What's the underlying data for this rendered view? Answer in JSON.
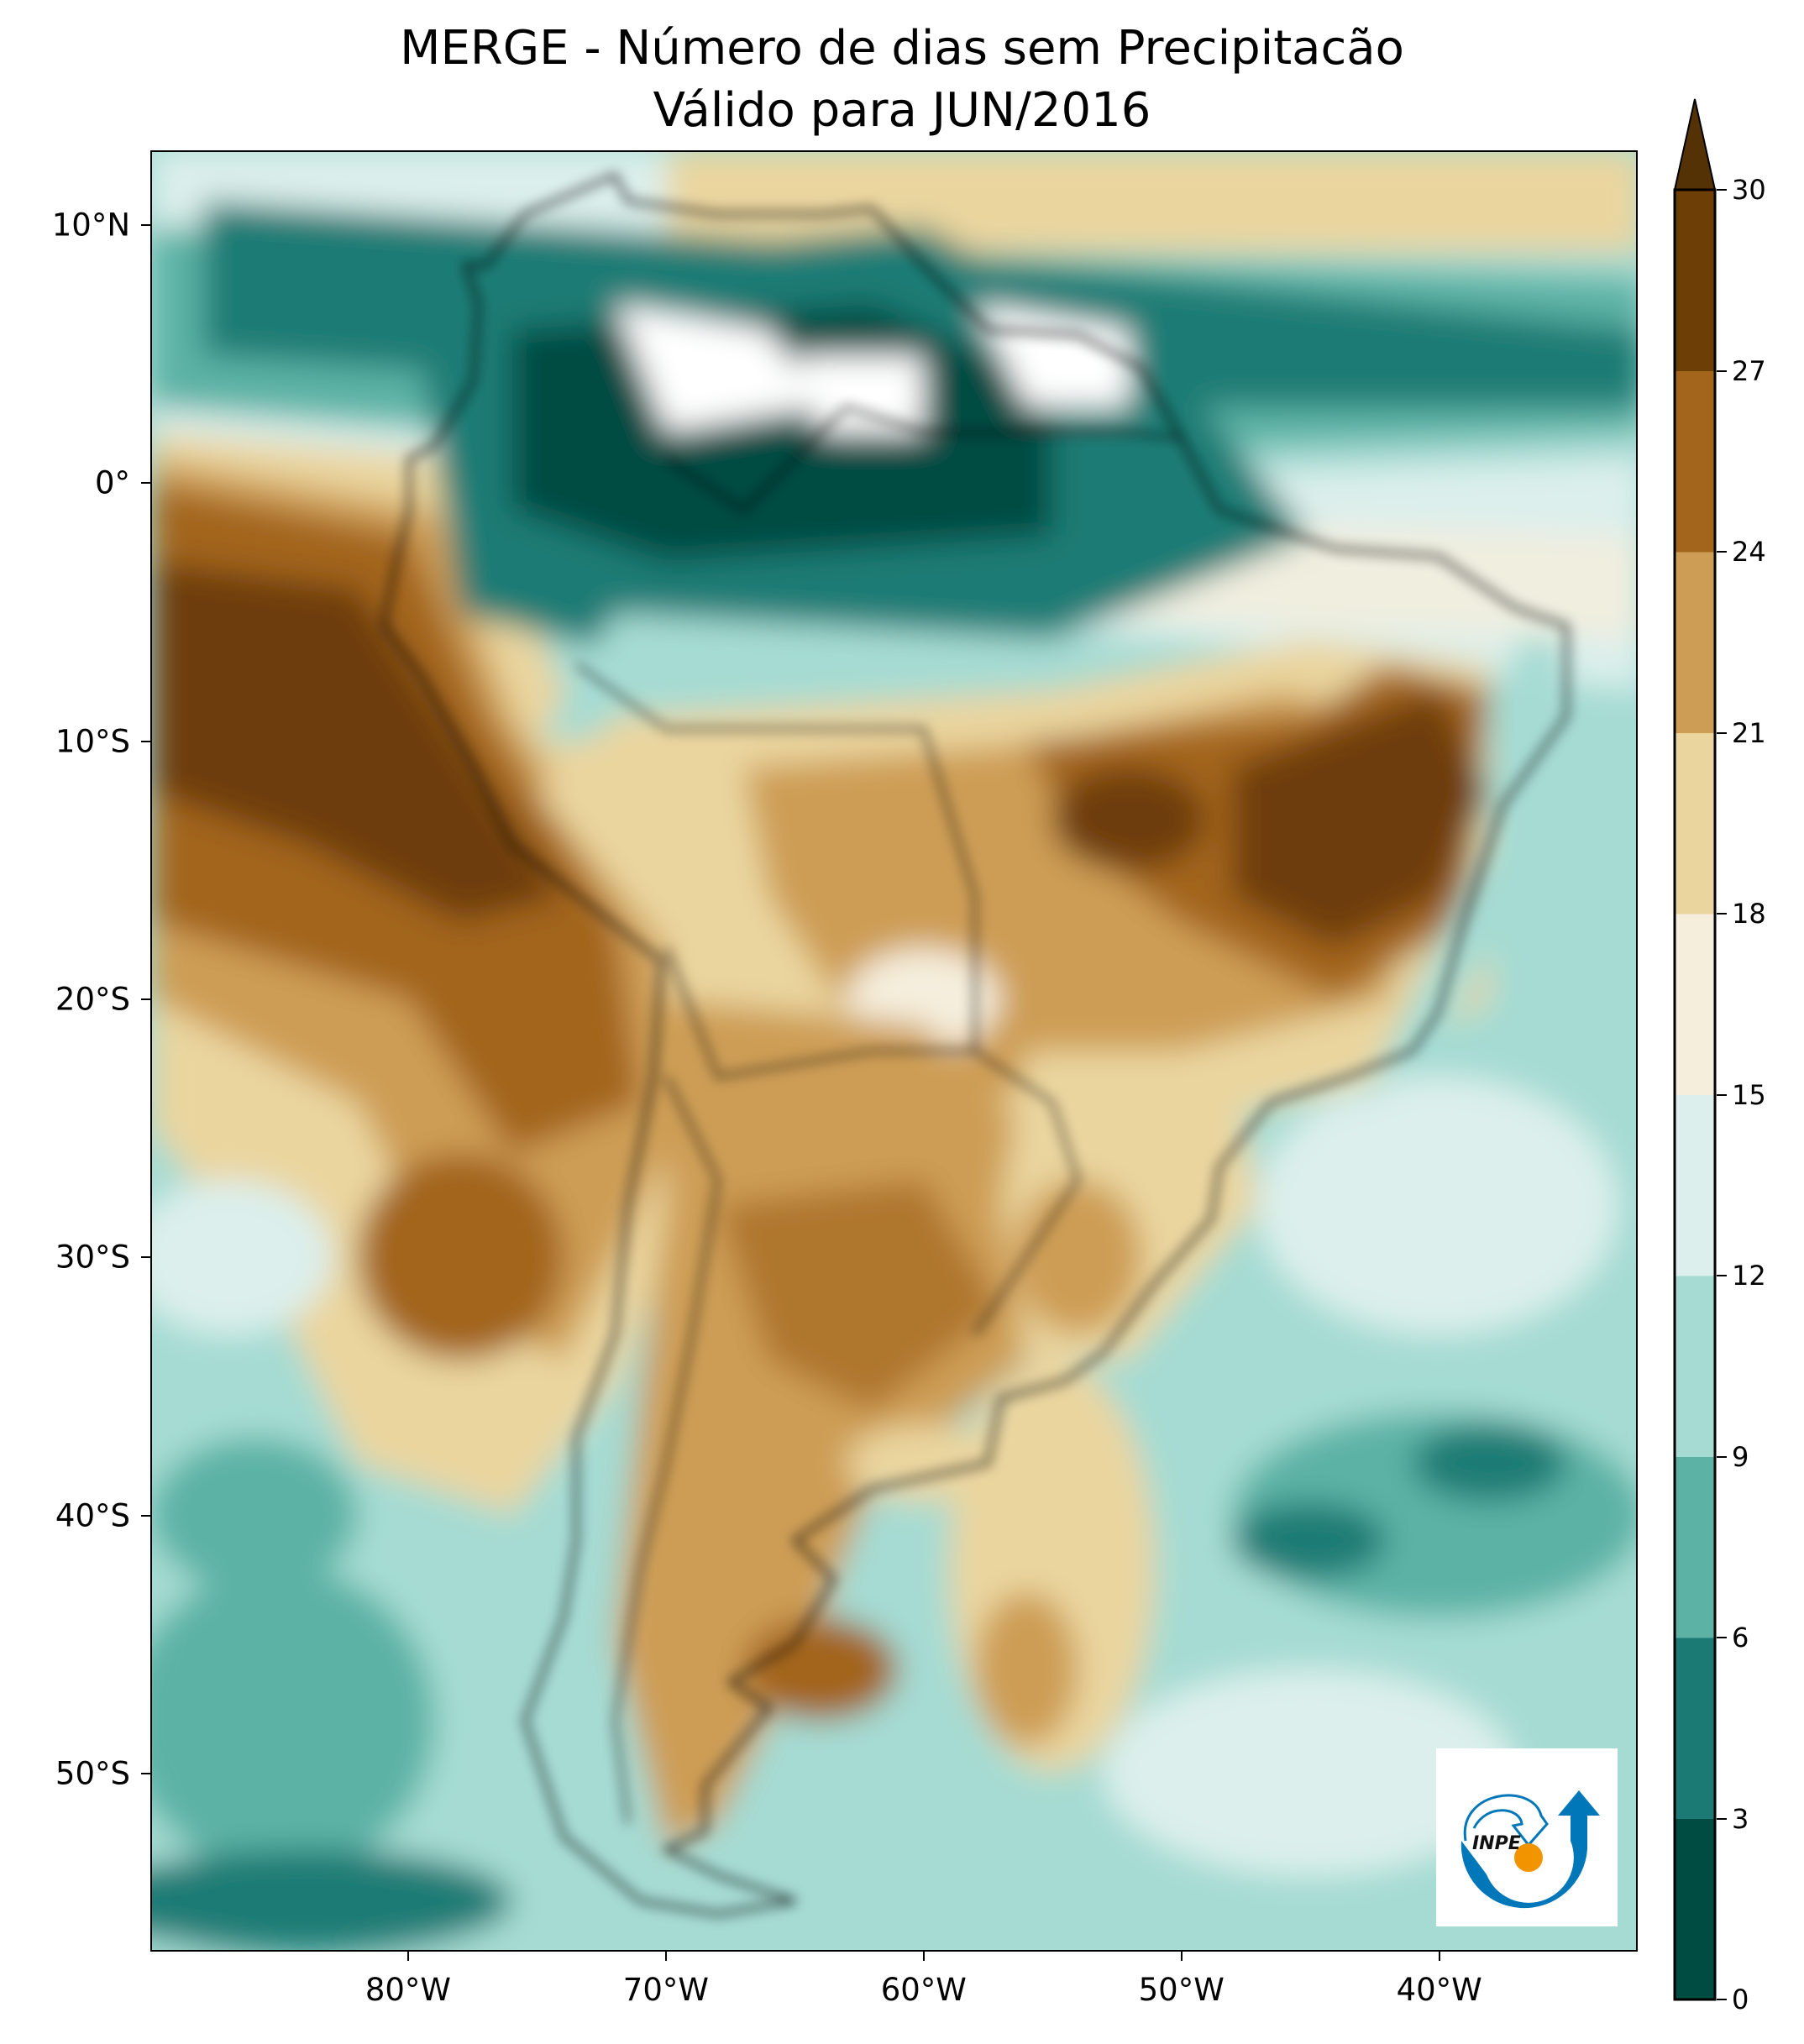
{
  "title": {
    "line1": "MERGE - Número de dias sem Precipitacão",
    "line2": "Válido para JUN/2016"
  },
  "map_extent": {
    "lon": [
      -90,
      -32.3
    ],
    "lat": [
      -56.9,
      12.9
    ]
  },
  "lat_ticks": [
    {
      "value": 10,
      "label": "10°N"
    },
    {
      "value": 0,
      "label": "0°"
    },
    {
      "value": -10,
      "label": "10°S"
    },
    {
      "value": -20,
      "label": "20°S"
    },
    {
      "value": -30,
      "label": "30°S"
    },
    {
      "value": -40,
      "label": "40°S"
    },
    {
      "value": -50,
      "label": "50°S"
    }
  ],
  "lon_ticks": [
    {
      "value": -80,
      "label": "80°W"
    },
    {
      "value": -70,
      "label": "70°W"
    },
    {
      "value": -60,
      "label": "60°W"
    },
    {
      "value": -50,
      "label": "50°W"
    },
    {
      "value": -40,
      "label": "40°W"
    }
  ],
  "colorbar": {
    "levels": [
      "0",
      "3",
      "6",
      "9",
      "12",
      "15",
      "18",
      "21",
      "24",
      "27",
      "30"
    ],
    "colors": [
      "#014c42",
      "#1b7b74",
      "#5cb2a5",
      "#a5dbd3",
      "#dcefec",
      "#f5eedc",
      "#ead59f",
      "#cd9d55",
      "#a3651c",
      "#6e3e07"
    ],
    "extend_color": "#553205",
    "extend": "max"
  },
  "logo": {
    "text": "INPE",
    "blue": "#0077b9",
    "orange": "#f29400"
  }
}
